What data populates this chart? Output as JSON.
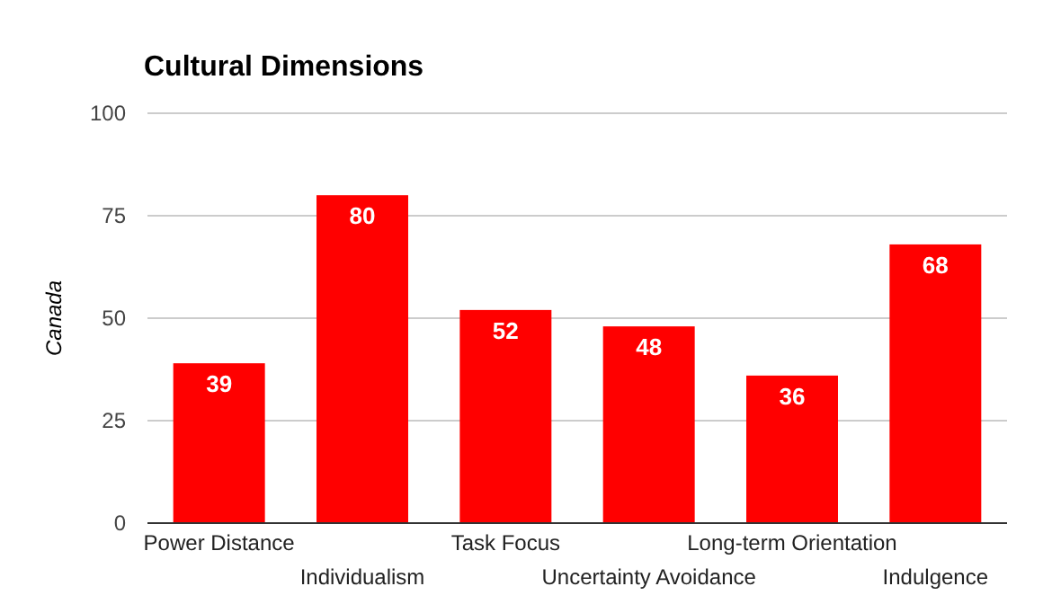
{
  "chart_data": {
    "type": "bar",
    "title": "Cultural Dimensions",
    "ylabel": "Canada",
    "categories": [
      "Power Distance",
      "Individualism",
      "Task Focus",
      "Uncertainty Avoidance",
      "Long-term Orientation",
      "Indulgence"
    ],
    "values": [
      39,
      80,
      52,
      48,
      36,
      68
    ],
    "color": "#ff0000",
    "ylim": [
      0,
      100
    ],
    "yticks": [
      0,
      25,
      50,
      75,
      100
    ],
    "grid": "y",
    "data_labels": true
  }
}
